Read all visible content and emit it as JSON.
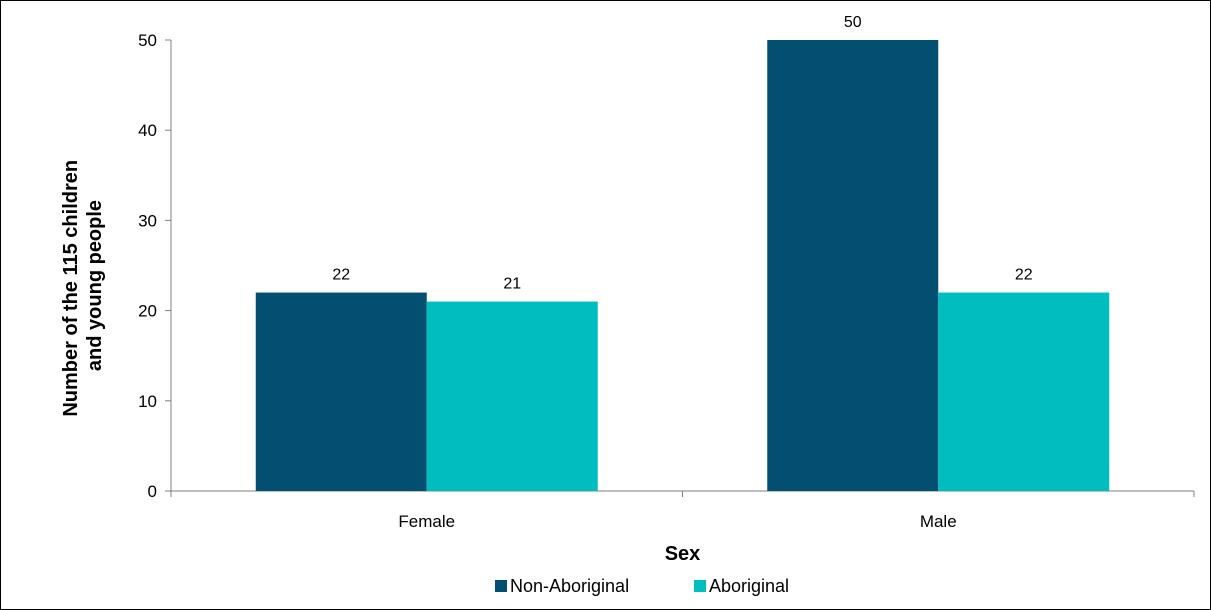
{
  "chart_data": {
    "type": "bar",
    "title": "",
    "xlabel": "Sex",
    "ylabel_lines": [
      "Number of the 115 children",
      "and young people"
    ],
    "categories": [
      "Female",
      "Male"
    ],
    "series": [
      {
        "name": "Non-Aboriginal",
        "values": [
          22,
          50
        ],
        "color": "#024F72"
      },
      {
        "name": "Aboriginal",
        "values": [
          21,
          22
        ],
        "color": "#00BDC0"
      }
    ],
    "ylim": [
      0,
      50
    ],
    "yticks": [
      0,
      10,
      20,
      30,
      40,
      50
    ],
    "grid": false,
    "legend_position": "bottom"
  }
}
